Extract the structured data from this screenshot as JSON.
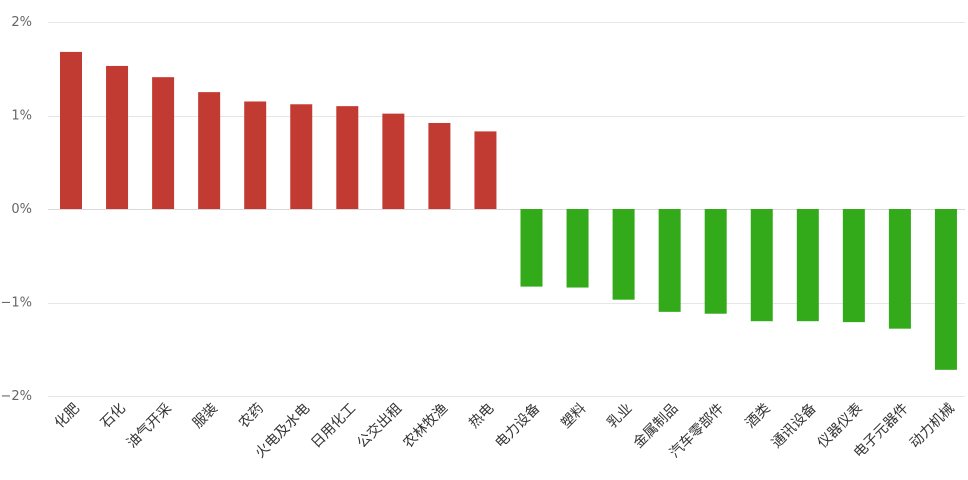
{
  "chart_data": {
    "type": "bar",
    "title": "",
    "xlabel": "",
    "ylabel": "",
    "ylim": [
      -2,
      2
    ],
    "y_ticks": [
      2,
      1,
      0,
      -1,
      -2
    ],
    "y_tick_labels": [
      "2%",
      "1%",
      "0%",
      "−1%",
      "−2%"
    ],
    "grid": true,
    "legend": "none",
    "colors": {
      "positive": "#c23b32",
      "negative": "#33aa1a"
    },
    "categories": [
      "化肥",
      "石化",
      "油气开采",
      "服装",
      "农药",
      "火电及水电",
      "日用化工",
      "公交出租",
      "农林牧渔",
      "热电",
      "电力设备",
      "塑料",
      "乳业",
      "金属制品",
      "汽车零部件",
      "酒类",
      "通讯设备",
      "仪器仪表",
      "电子元器件",
      "动力机械"
    ],
    "values": [
      1.68,
      1.53,
      1.41,
      1.25,
      1.15,
      1.12,
      1.1,
      1.02,
      0.92,
      0.83,
      -0.83,
      -0.84,
      -0.97,
      -1.1,
      -1.12,
      -1.2,
      -1.2,
      -1.21,
      -1.28,
      -1.72
    ]
  }
}
